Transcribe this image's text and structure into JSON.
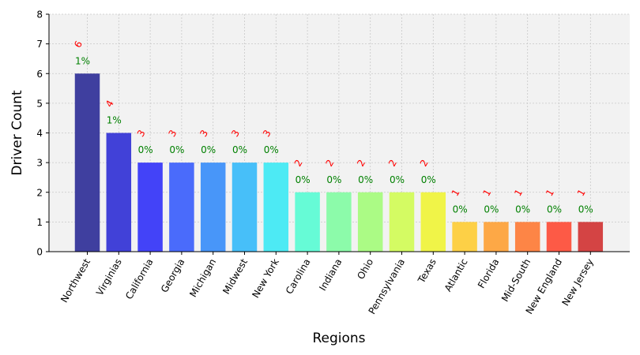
{
  "chart_data": {
    "type": "bar",
    "categories": [
      "Northwest",
      "Virginias",
      "California",
      "Georgia",
      "Michigan",
      "Midwest",
      "New York",
      "Carolina",
      "Indiana",
      "Ohio",
      "Pennsylvania",
      "Texas",
      "Atlantic",
      "Florida",
      "Mid-South",
      "New England",
      "New Jersey"
    ],
    "values": [
      6,
      4,
      3,
      3,
      3,
      3,
      3,
      2,
      2,
      2,
      2,
      2,
      1,
      1,
      1,
      1,
      1
    ],
    "count_labels": [
      "6",
      "4",
      "3",
      "3",
      "3",
      "3",
      "3",
      "2",
      "2",
      "2",
      "2",
      "2",
      "1",
      "1",
      "1",
      "1",
      "1"
    ],
    "percent_labels": [
      "1%",
      "1%",
      "0%",
      "0%",
      "0%",
      "0%",
      "0%",
      "0%",
      "0%",
      "0%",
      "0%",
      "0%",
      "0%",
      "0%",
      "0%",
      "0%",
      "0%"
    ],
    "bar_colors": [
      "#3f3f9f",
      "#4141d8",
      "#4343f8",
      "#4a6bfb",
      "#4896f9",
      "#47bff9",
      "#4deaf4",
      "#66fbd6",
      "#8cfbaa",
      "#abfb85",
      "#d4fb63",
      "#f0f448",
      "#fdd046",
      "#fda846",
      "#fd8546",
      "#fd5a46",
      "#d44444"
    ],
    "title": "",
    "xlabel": "Regions",
    "ylabel": "Driver Count",
    "ylim": [
      0,
      8
    ],
    "yticks": [
      "0",
      "1",
      "2",
      "3",
      "4",
      "5",
      "6",
      "7",
      "8"
    ],
    "grid": true,
    "background": "#f2f2f2"
  }
}
